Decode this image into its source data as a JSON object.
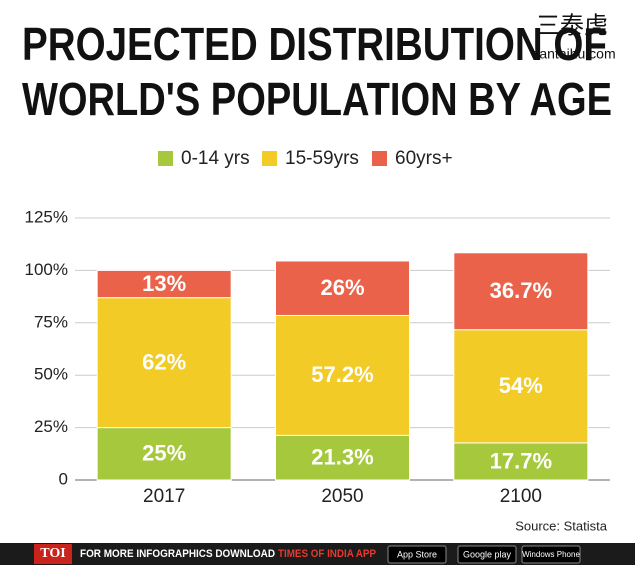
{
  "chart_data": {
    "type": "stacked_bar",
    "title": [
      "PROJECTED DISTRIBUTION OF",
      "WORLD'S POPULATION BY AGE"
    ],
    "categories": [
      "2017",
      "2050",
      "2100"
    ],
    "series": [
      {
        "name": "0-14 yrs",
        "color": "#a6c83d",
        "values": [
          25,
          21.3,
          17.7
        ],
        "value_labels": [
          "25%",
          "21.3%",
          "17.7%"
        ]
      },
      {
        "name": "15-59yrs",
        "color": "#f2cb27",
        "values": [
          62,
          57.2,
          54
        ],
        "value_labels": [
          "62%",
          "57.2%",
          "54%"
        ]
      },
      {
        "name": "60yrs+",
        "color": "#ea624a",
        "values": [
          13,
          26,
          36.7
        ],
        "value_labels": [
          "13%",
          "26%",
          "36.7%"
        ]
      }
    ],
    "ylim": [
      0,
      125
    ],
    "yticks": [
      0,
      {
        "value": 25,
        "label": "25%"
      },
      {
        "value": 50,
        "label": "50%"
      },
      {
        "value": 75,
        "label": "75%"
      },
      {
        "value": 100,
        "label": "100%"
      },
      {
        "value": 125,
        "label": "125%"
      }
    ],
    "grid": true,
    "source": "Source: Statista"
  },
  "watermark": [
    "三泰虎",
    "santaihu.com"
  ],
  "footer": {
    "brand": "TOI",
    "text": "FOR MORE  INFOGRAPHICS DOWNLOAD",
    "app": "TIMES OF INDIA  APP",
    "badges": [
      "App Store",
      "Google play",
      "Windows Phone"
    ]
  }
}
